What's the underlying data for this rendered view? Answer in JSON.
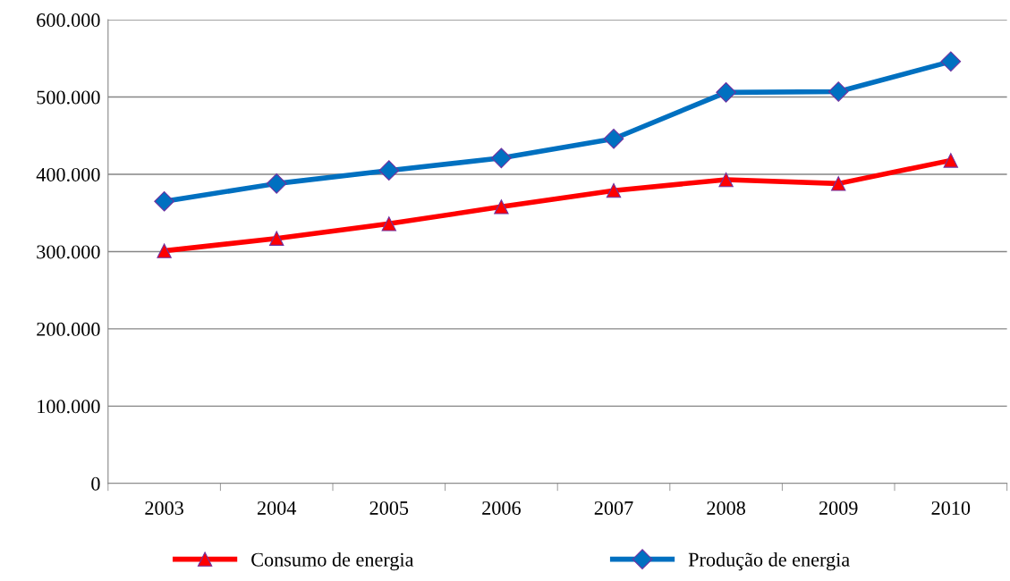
{
  "chart_data": {
    "type": "line",
    "categories": [
      "2003",
      "2004",
      "2005",
      "2006",
      "2007",
      "2008",
      "2009",
      "2010"
    ],
    "series": [
      {
        "name": "Consumo de energia",
        "color": "#ff0000",
        "marker": "triangle",
        "values": [
          301000,
          317000,
          336000,
          358000,
          379000,
          393000,
          388000,
          418000
        ]
      },
      {
        "name": "Produção de energia",
        "color": "#0070c0",
        "marker": "diamond",
        "values": [
          365000,
          388000,
          405000,
          421000,
          446000,
          506000,
          507000,
          546000
        ]
      }
    ],
    "ylim": [
      0,
      600000
    ],
    "yticks": [
      0,
      {
        "value": 100000,
        "label": "100.000"
      },
      {
        "value": 200000,
        "label": "200.000"
      },
      {
        "value": 300000,
        "label": "300.000"
      },
      {
        "value": 400000,
        "label": "400.000"
      },
      {
        "value": 500000,
        "label": "500.000"
      },
      {
        "value": 600000,
        "label": "600.000"
      }
    ],
    "grid": "y",
    "legend": "bottom",
    "line_style": "solid"
  }
}
